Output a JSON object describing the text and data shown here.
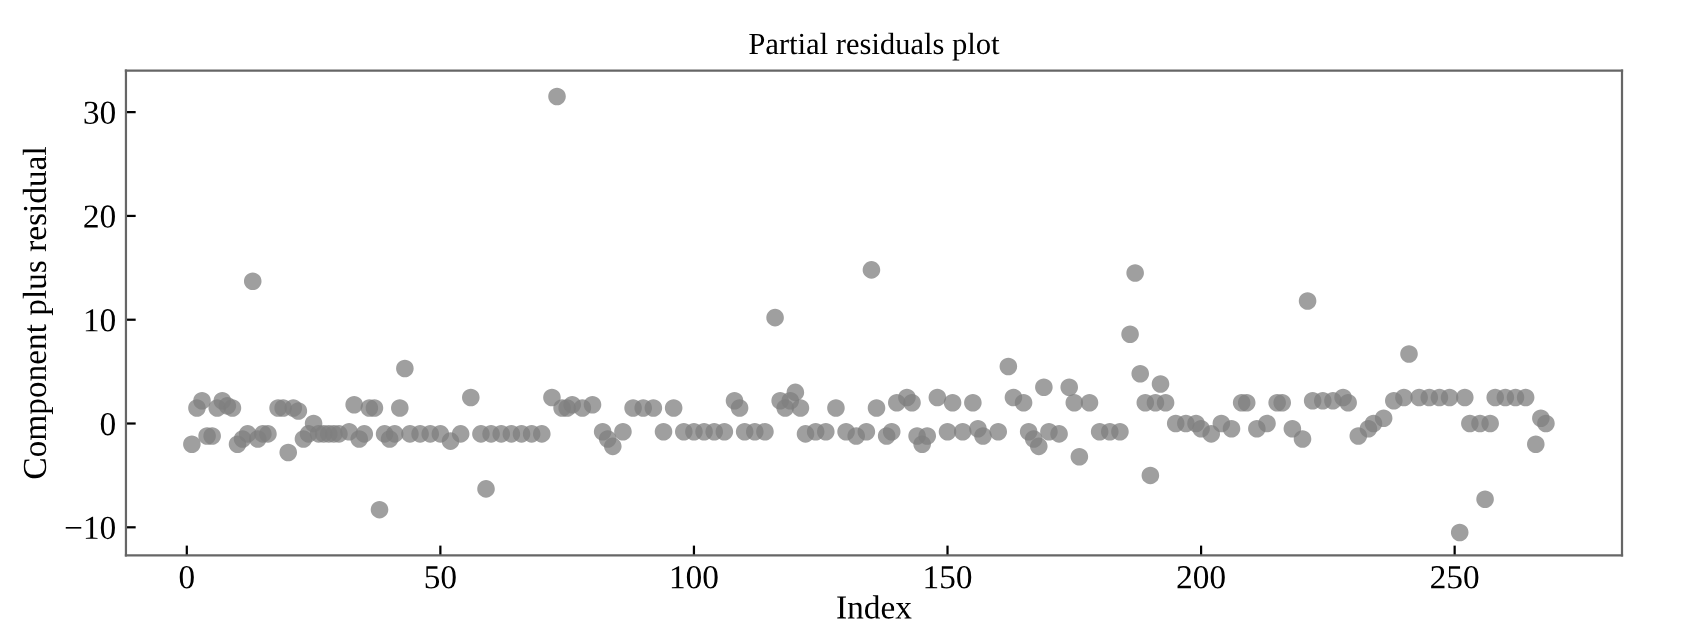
{
  "chart_data": {
    "type": "scatter",
    "title": "Partial residuals plot",
    "xlabel": "Index",
    "ylabel": "Component plus residual",
    "x": [
      1,
      2,
      3,
      4,
      5,
      6,
      7,
      8,
      9,
      10,
      11,
      12,
      13,
      14,
      15,
      16,
      18,
      19,
      20,
      21,
      22,
      23,
      24,
      25,
      26,
      27,
      28,
      29,
      30,
      32,
      33,
      34,
      35,
      36,
      37,
      38,
      39,
      40,
      41,
      42,
      43,
      44,
      46,
      48,
      50,
      52,
      54,
      56,
      58,
      59,
      60,
      62,
      64,
      66,
      68,
      70,
      72,
      73,
      74,
      75,
      76,
      78,
      80,
      82,
      83,
      84,
      86,
      88,
      90,
      92,
      94,
      96,
      98,
      100,
      102,
      104,
      106,
      108,
      109,
      110,
      112,
      114,
      116,
      117,
      118,
      119,
      120,
      121,
      122,
      124,
      126,
      128,
      130,
      132,
      134,
      135,
      136,
      138,
      139,
      140,
      142,
      143,
      144,
      145,
      146,
      148,
      150,
      151,
      153,
      155,
      156,
      157,
      160,
      162,
      163,
      165,
      166,
      167,
      168,
      169,
      170,
      172,
      174,
      175,
      176,
      178,
      180,
      182,
      184,
      186,
      187,
      188,
      189,
      190,
      191,
      192,
      193,
      195,
      197,
      199,
      200,
      202,
      204,
      206,
      208,
      209,
      211,
      213,
      215,
      216,
      218,
      220,
      221,
      222,
      224,
      226,
      228,
      229,
      231,
      233,
      234,
      236,
      238,
      240,
      241,
      243,
      245,
      247,
      249,
      251,
      252,
      253,
      255,
      256,
      257,
      258,
      260,
      262,
      264,
      266,
      267,
      268
    ],
    "series": [
      {
        "color": "#7f7f7f",
        "values": [
          -2,
          1.5,
          2.2,
          -1.2,
          -1.2,
          1.5,
          2.2,
          1.7,
          1.5,
          -2,
          -1.5,
          -1,
          13.7,
          -1.5,
          -1,
          -1,
          1.5,
          1.5,
          -2.8,
          1.5,
          1.2,
          -1.5,
          -1,
          0,
          -1,
          -1,
          -1,
          -1,
          -1,
          -0.8,
          1.8,
          -1.5,
          -1,
          1.5,
          1.5,
          -8.3,
          -1,
          -1.5,
          -1,
          1.5,
          5.3,
          -1,
          -1,
          -1,
          -1,
          -1.7,
          -1,
          2.5,
          -1,
          -6.3,
          -1,
          -1,
          -1,
          -1,
          -1,
          -1,
          2.5,
          31.5,
          1.5,
          1.5,
          1.8,
          1.5,
          1.8,
          -0.8,
          -1.5,
          -2.2,
          -0.8,
          1.5,
          1.5,
          1.5,
          -0.8,
          1.5,
          -0.8,
          -0.8,
          -0.8,
          -0.8,
          -0.8,
          2.2,
          1.5,
          -0.8,
          -0.8,
          -0.8,
          10.2,
          2.2,
          1.5,
          2.2,
          3,
          1.5,
          -1,
          -0.8,
          -0.8,
          1.5,
          -0.8,
          -1.2,
          -0.8,
          14.8,
          1.5,
          -1.2,
          -0.8,
          2,
          2.5,
          2,
          -1.2,
          -2,
          -1.2,
          2.5,
          -0.8,
          2,
          -0.8,
          2,
          -0.5,
          -1.2,
          -0.8,
          5.5,
          2.5,
          2,
          -0.8,
          -1.5,
          -2.2,
          3.5,
          -0.8,
          -1,
          3.5,
          2,
          -3.2,
          2,
          -0.8,
          -0.8,
          -0.8,
          8.6,
          14.5,
          4.8,
          2,
          -5,
          2,
          3.8,
          2,
          0,
          0,
          0,
          -0.5,
          -1,
          0,
          -0.5,
          2,
          2,
          -0.5,
          0,
          2,
          2,
          -0.5,
          -1.5,
          11.8,
          2.2,
          2.2,
          2.2,
          2.5,
          2,
          -1.2,
          -0.5,
          0,
          0.5,
          2.2,
          2.5,
          6.7,
          2.5,
          2.5,
          2.5,
          2.5,
          -10.5,
          2.5,
          0,
          0,
          -7.3,
          0,
          2.5,
          2.5,
          2.5,
          2.5,
          -2,
          0.5,
          0
        ]
      }
    ],
    "marker": "circle",
    "xlim": [
      -12,
      283
    ],
    "ylim": [
      -12.7,
      34
    ],
    "xticks": [
      0,
      50,
      100,
      150,
      200,
      250
    ],
    "yticks": [
      -10,
      0,
      10,
      20,
      30
    ],
    "grid": false,
    "legend": false
  }
}
